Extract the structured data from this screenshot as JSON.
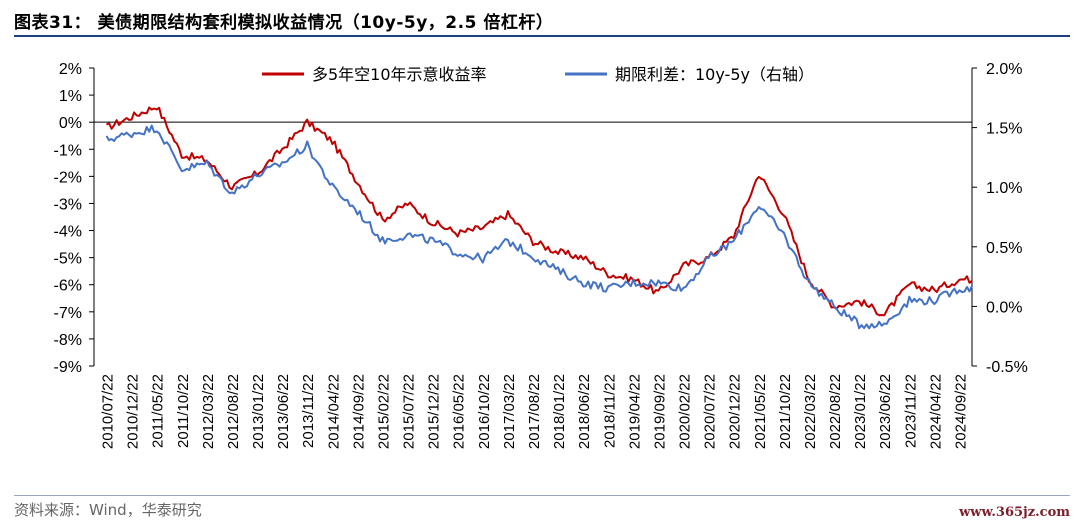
{
  "header": {
    "title": "图表31：  美债期限结构套利模拟收益情况（10y-5y，2.5 倍杠杆）"
  },
  "footer": {
    "source": "资料来源：Wind，华泰研究",
    "watermark": "www.365jz.com"
  },
  "colors": {
    "red_series": "#c00000",
    "blue_series": "#4472c4",
    "axis": "#000000",
    "rule": "#1f3f7a"
  },
  "chart_data": {
    "type": "line",
    "legend_position": "top-center",
    "grid": false,
    "x_ticks": [
      "2010/07/22",
      "2010/12/22",
      "2011/05/22",
      "2011/10/22",
      "2012/03/22",
      "2012/08/22",
      "2013/01/22",
      "2013/06/22",
      "2013/11/22",
      "2014/04/22",
      "2014/09/22",
      "2015/02/22",
      "2015/07/22",
      "2015/12/22",
      "2016/05/22",
      "2016/10/22",
      "2017/03/22",
      "2017/08/22",
      "2018/01/22",
      "2018/06/22",
      "2018/11/22",
      "2019/04/22",
      "2019/09/22",
      "2020/02/22",
      "2020/07/22",
      "2020/12/22",
      "2021/05/22",
      "2021/10/22",
      "2022/03/22",
      "2022/08/22",
      "2023/01/22",
      "2023/06/22",
      "2023/11/22",
      "2024/04/22",
      "2024/09/22"
    ],
    "y_left": {
      "ylim": [
        -9,
        2
      ],
      "ticks": [
        "2%",
        "1%",
        "0%",
        "-1%",
        "-2%",
        "-3%",
        "-4%",
        "-5%",
        "-6%",
        "-7%",
        "-8%",
        "-9%"
      ]
    },
    "y_right": {
      "ylim": [
        -0.5,
        2.0
      ],
      "ticks": [
        "2.0%",
        "1.5%",
        "1.0%",
        "0.5%",
        "0.0%",
        "-0.5%"
      ]
    },
    "series": [
      {
        "name": "多5年空10年示意收益率",
        "axis": "left",
        "color": "#c00000",
        "values": [
          -0.2,
          0.2,
          0.6,
          -1.2,
          -1.4,
          -2.4,
          -1.9,
          -1.0,
          0.0,
          -0.7,
          -2.2,
          -3.6,
          -3.0,
          -3.7,
          -4.1,
          -3.9,
          -3.4,
          -4.4,
          -4.8,
          -5.0,
          -5.6,
          -5.8,
          -6.3,
          -5.3,
          -5.0,
          -4.2,
          -1.9,
          -3.4,
          -5.8,
          -6.8,
          -6.6,
          -7.1,
          -6.0,
          -6.2,
          -5.8
        ]
      },
      {
        "name": "期限利差：10y-5y（右轴）",
        "axis": "right",
        "color": "#4472c4",
        "values": [
          1.4,
          1.45,
          1.5,
          1.15,
          1.2,
          0.95,
          1.1,
          1.2,
          1.35,
          1.0,
          0.8,
          0.55,
          0.6,
          0.55,
          0.45,
          0.4,
          0.55,
          0.42,
          0.3,
          0.2,
          0.15,
          0.2,
          0.2,
          0.15,
          0.4,
          0.55,
          0.85,
          0.6,
          0.2,
          0.0,
          -0.15,
          -0.15,
          0.05,
          0.05,
          0.15
        ]
      }
    ]
  }
}
